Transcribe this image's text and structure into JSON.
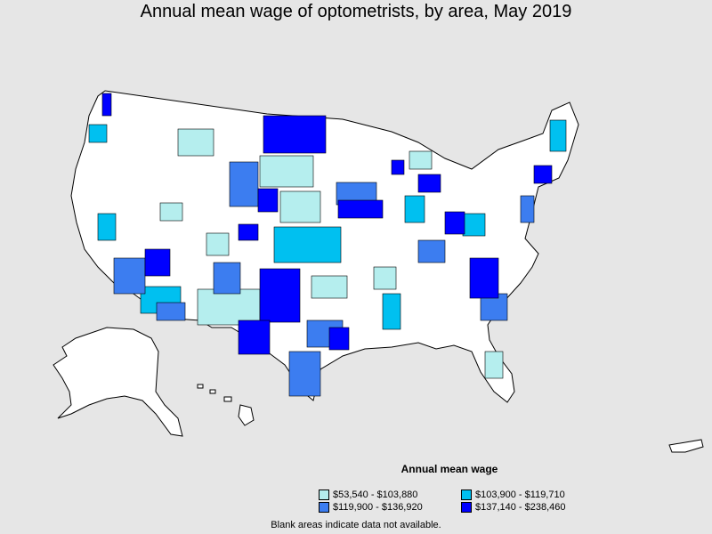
{
  "title": "Annual mean wage of optometrists, by area, May 2019",
  "legend": {
    "title": "Annual mean wage",
    "items": [
      {
        "label": "$53,540 - $103,880",
        "color": "#b5eeee"
      },
      {
        "label": "$103,900 - $119,710",
        "color": "#00c0f0"
      },
      {
        "label": "$119,900 - $136,920",
        "color": "#3c7df0"
      },
      {
        "label": "$137,140 - $238,460",
        "color": "#0000ff"
      }
    ]
  },
  "note": "Blank areas indicate data not available.",
  "colors": {
    "background": "#e6e6e6",
    "land": "#ffffff",
    "border": "#000000"
  }
}
